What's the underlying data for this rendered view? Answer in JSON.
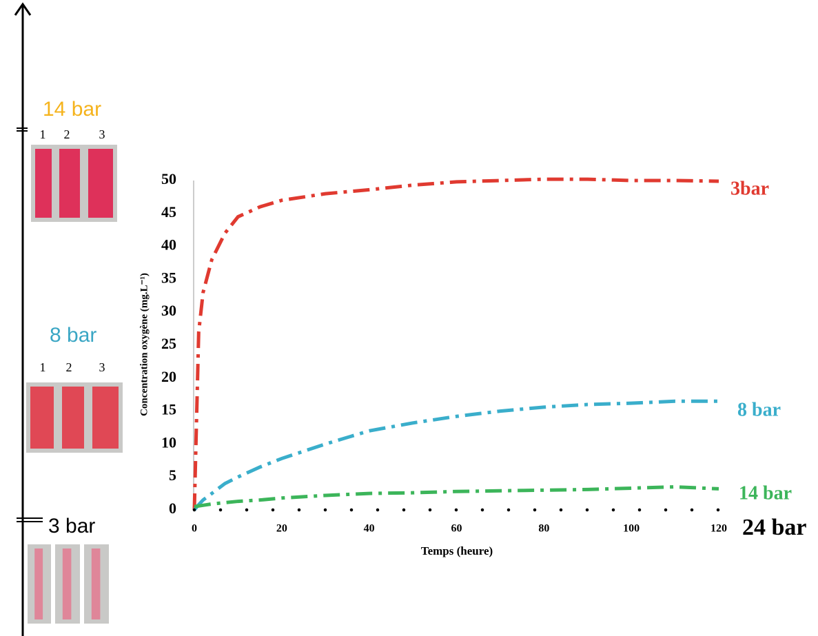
{
  "chart_data": {
    "type": "line",
    "x_label": "Temps (heure)",
    "y_label": "Concentration oxygène (mg.L⁻¹)",
    "x": [
      0,
      1,
      2,
      4,
      7,
      10,
      15,
      20,
      30,
      40,
      50,
      60,
      70,
      80,
      90,
      100,
      110,
      120
    ],
    "series": [
      {
        "name": "3bar",
        "color": "#e03a30",
        "line_style": "dashdot",
        "values": [
          0,
          27,
          33,
          38,
          42,
          44.5,
          46,
          47,
          48,
          48.6,
          49.3,
          49.8,
          50,
          50.2,
          50.2,
          50,
          50,
          49.9
        ]
      },
      {
        "name": "8 bar",
        "color": "#3aaecb",
        "line_style": "dashdot",
        "values": [
          0,
          0.8,
          1.5,
          2.5,
          4,
          5,
          6.5,
          7.8,
          10,
          12,
          13.2,
          14.2,
          15,
          15.6,
          16,
          16.2,
          16.5,
          16.5
        ]
      },
      {
        "name": "14 bar",
        "color": "#3cb55a",
        "line_style": "dashdot",
        "values": [
          0.5,
          0.6,
          0.7,
          0.9,
          1.1,
          1.3,
          1.5,
          1.8,
          2.2,
          2.5,
          2.6,
          2.8,
          2.9,
          3,
          3.1,
          3.3,
          3.5,
          3.2
        ]
      },
      {
        "name": "24 bar",
        "color": "#000000",
        "line_style": "dotted",
        "values": [
          0,
          0,
          0,
          0,
          0,
          0,
          0,
          0,
          0,
          0,
          0,
          0,
          0,
          0,
          0,
          0,
          0,
          0
        ]
      }
    ],
    "xlim": [
      0,
      120
    ],
    "xticks": [
      0,
      20,
      40,
      60,
      80,
      100,
      120
    ],
    "ylim": [
      0,
      50
    ],
    "yticks": [
      0,
      5,
      10,
      15,
      20,
      25,
      30,
      35,
      40,
      45,
      50
    ]
  },
  "side_panel": [
    {
      "label": "14 bar",
      "color": "#f5b31c",
      "numbers": [
        "1",
        "2",
        "3"
      ]
    },
    {
      "label": "8 bar",
      "color": "#3aa6c4",
      "numbers": [
        "1",
        "2",
        "3"
      ]
    },
    {
      "label": "3 bar",
      "color": "#000000"
    }
  ]
}
